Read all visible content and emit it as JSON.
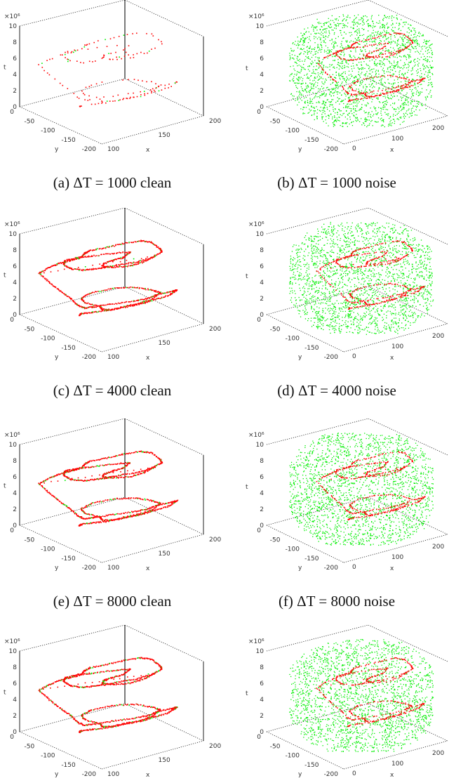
{
  "figure": {
    "panels": [
      {
        "id": "a",
        "caption_prefix": "(a)",
        "delta": "ΔT",
        "eq": "=",
        "value": "1000",
        "suffix": "clean",
        "variant": "clean",
        "density": "sparse"
      },
      {
        "id": "b",
        "caption_prefix": "(b)",
        "delta": "ΔT",
        "eq": "=",
        "value": "1000",
        "suffix": "noise",
        "variant": "noise",
        "density": "dense"
      },
      {
        "id": "c",
        "caption_prefix": "(c)",
        "delta": "ΔT",
        "eq": "=",
        "value": "4000",
        "suffix": "clean",
        "variant": "clean",
        "density": "dense"
      },
      {
        "id": "d",
        "caption_prefix": "(d)",
        "delta": "ΔT",
        "eq": "=",
        "value": "4000",
        "suffix": "noise",
        "variant": "noise",
        "density": "dense"
      },
      {
        "id": "e",
        "caption_prefix": "(e)",
        "delta": "ΔT",
        "eq": "=",
        "value": "8000",
        "suffix": "clean",
        "variant": "clean",
        "density": "dense"
      },
      {
        "id": "f",
        "caption_prefix": "(f)",
        "delta": "ΔT",
        "eq": "=",
        "value": "8000",
        "suffix": "noise",
        "variant": "noise",
        "density": "dense"
      }
    ],
    "axes": {
      "t_multiplier": "×10⁶",
      "t_ticks": [
        "0",
        "2",
        "4",
        "6",
        "8",
        "10"
      ],
      "t_label": "t",
      "y_ticks": [
        "0",
        "-50",
        "-100",
        "-150",
        "-200"
      ],
      "y_label": "y",
      "x_ticks": [
        "100",
        "150",
        "200"
      ],
      "x_label": "x"
    },
    "colors": {
      "trajectory": "#ff0000",
      "points": "#00ee00",
      "axes": "#222222"
    }
  },
  "chart_data": [
    {
      "type": "scatter",
      "title": "(a) ΔT = 1000 clean",
      "zlabel": "t",
      "ylabel": "y",
      "xlabel": "x",
      "zlim": [
        0,
        10000000
      ],
      "ylim": [
        -200,
        0
      ],
      "xlim": [
        100,
        200
      ],
      "series": [
        {
          "name": "trajectory",
          "color": "#ff0000"
        },
        {
          "name": "events",
          "color": "#00ee00"
        }
      ]
    },
    {
      "type": "scatter",
      "title": "(b) ΔT = 1000 noise",
      "zlabel": "t",
      "ylabel": "y",
      "xlabel": "x",
      "zlim": [
        0,
        10000000
      ],
      "ylim": [
        -200,
        0
      ],
      "xlim": [
        0,
        200
      ],
      "series": [
        {
          "name": "trajectory",
          "color": "#ff0000"
        },
        {
          "name": "noise events",
          "color": "#00ee00"
        }
      ]
    },
    {
      "type": "scatter",
      "title": "(c) ΔT = 4000 clean",
      "zlabel": "t",
      "ylabel": "y",
      "xlabel": "x",
      "zlim": [
        0,
        10000000
      ],
      "ylim": [
        -200,
        0
      ],
      "xlim": [
        100,
        200
      ],
      "series": [
        {
          "name": "trajectory",
          "color": "#ff0000"
        },
        {
          "name": "events",
          "color": "#00ee00"
        }
      ]
    },
    {
      "type": "scatter",
      "title": "(d) ΔT = 4000 noise",
      "zlabel": "t",
      "ylabel": "y",
      "xlabel": "x",
      "zlim": [
        0,
        10000000
      ],
      "ylim": [
        -200,
        0
      ],
      "xlim": [
        0,
        200
      ],
      "series": [
        {
          "name": "trajectory",
          "color": "#ff0000"
        },
        {
          "name": "noise events",
          "color": "#00ee00"
        }
      ]
    },
    {
      "type": "scatter",
      "title": "(e) ΔT = 8000 clean",
      "zlabel": "t",
      "ylabel": "y",
      "xlabel": "x",
      "zlim": [
        0,
        10000000
      ],
      "ylim": [
        -200,
        0
      ],
      "xlim": [
        100,
        200
      ],
      "series": [
        {
          "name": "trajectory",
          "color": "#ff0000"
        },
        {
          "name": "events",
          "color": "#00ee00"
        }
      ]
    },
    {
      "type": "scatter",
      "title": "(f) ΔT = 8000 noise",
      "zlabel": "t",
      "ylabel": "y",
      "xlabel": "x",
      "zlim": [
        0,
        10000000
      ],
      "ylim": [
        -200,
        0
      ],
      "xlim": [
        0,
        200
      ],
      "series": [
        {
          "name": "trajectory",
          "color": "#ff0000"
        },
        {
          "name": "noise events",
          "color": "#00ee00"
        }
      ]
    }
  ]
}
